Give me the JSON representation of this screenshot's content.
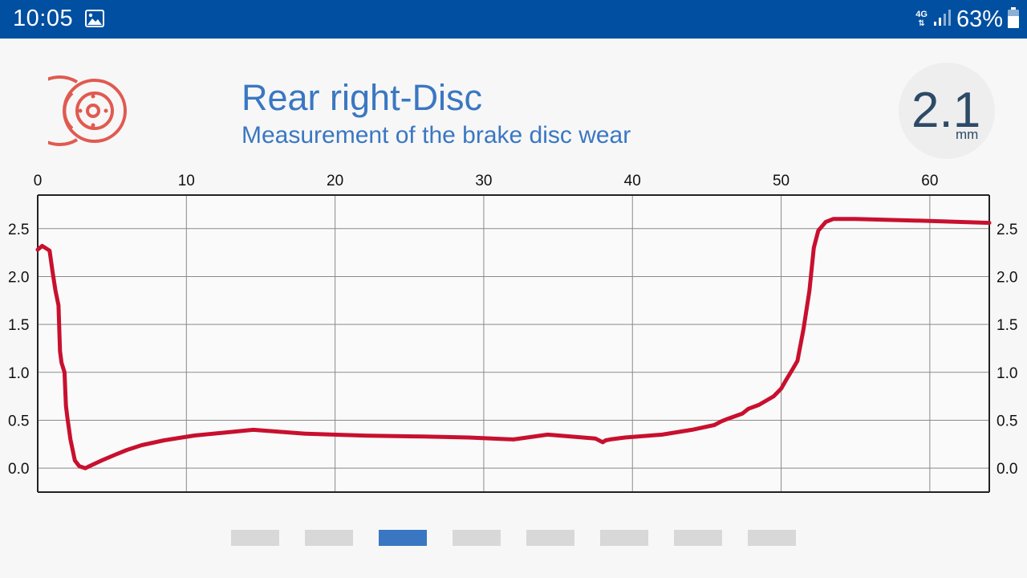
{
  "status_bar": {
    "time": "10:05",
    "left_icon": "image-icon",
    "network": "4G",
    "battery": "63%"
  },
  "header": {
    "icon": "brake-disc-icon",
    "icon_color": "#e05a50",
    "title": "Rear right-Disc",
    "subtitle": "Measurement of the brake disc wear",
    "accent_color": "#3a77c2"
  },
  "measurement": {
    "value": "2.1",
    "unit": "mm"
  },
  "chart_data": {
    "type": "line",
    "title": "",
    "xlabel": "",
    "ylabel": "",
    "xlim": [
      0,
      64
    ],
    "ylim": [
      -0.25,
      2.85
    ],
    "x_ticks": [
      0,
      10,
      20,
      30,
      40,
      50,
      60
    ],
    "x_tick_labels": [
      "0",
      "10",
      "20",
      "30",
      "40",
      "50",
      "60"
    ],
    "y_ticks": [
      0.0,
      0.5,
      1.0,
      1.5,
      2.0,
      2.5
    ],
    "y_tick_labels": [
      "0.0",
      "0.5",
      "1.0",
      "1.5",
      "2.0",
      "2.5"
    ],
    "grid": true,
    "x_axis_position": "top",
    "y_axis_position": "both",
    "line_color": "#c8102e",
    "series": [
      {
        "x": [
          0,
          0.3,
          0.8,
          1.0,
          1.2,
          1.4,
          1.5,
          1.6,
          1.8,
          1.9,
          2.0,
          2.2,
          2.5,
          2.8,
          3.2,
          3.6,
          4.3,
          5.2,
          6.0,
          7.0,
          8.5,
          10.5,
          12.5,
          14.5,
          18.0,
          22.0,
          26.0,
          29.0,
          32.0,
          34.3,
          37.5,
          38.0,
          38.2,
          38.5,
          39.5,
          42.0,
          44.0,
          45.5,
          46.0,
          46.5,
          47.4,
          47.8,
          48.5,
          49.5,
          50.0,
          50.3,
          50.8,
          51.1,
          51.5,
          51.9,
          52.2,
          52.5,
          53.0,
          53.5,
          55.0,
          60.0,
          64.0
        ],
        "y": [
          2.28,
          2.32,
          2.27,
          2.05,
          1.85,
          1.7,
          1.22,
          1.1,
          1.0,
          0.65,
          0.52,
          0.3,
          0.08,
          0.02,
          0.0,
          0.03,
          0.08,
          0.14,
          0.19,
          0.24,
          0.29,
          0.34,
          0.37,
          0.4,
          0.36,
          0.34,
          0.33,
          0.32,
          0.3,
          0.35,
          0.31,
          0.27,
          0.29,
          0.3,
          0.32,
          0.35,
          0.4,
          0.45,
          0.49,
          0.52,
          0.57,
          0.62,
          0.66,
          0.75,
          0.83,
          0.91,
          1.04,
          1.12,
          1.45,
          1.85,
          2.3,
          2.48,
          2.57,
          2.6,
          2.6,
          2.58,
          2.56
        ]
      }
    ]
  },
  "pager": {
    "count": 8,
    "active_index": 2
  }
}
